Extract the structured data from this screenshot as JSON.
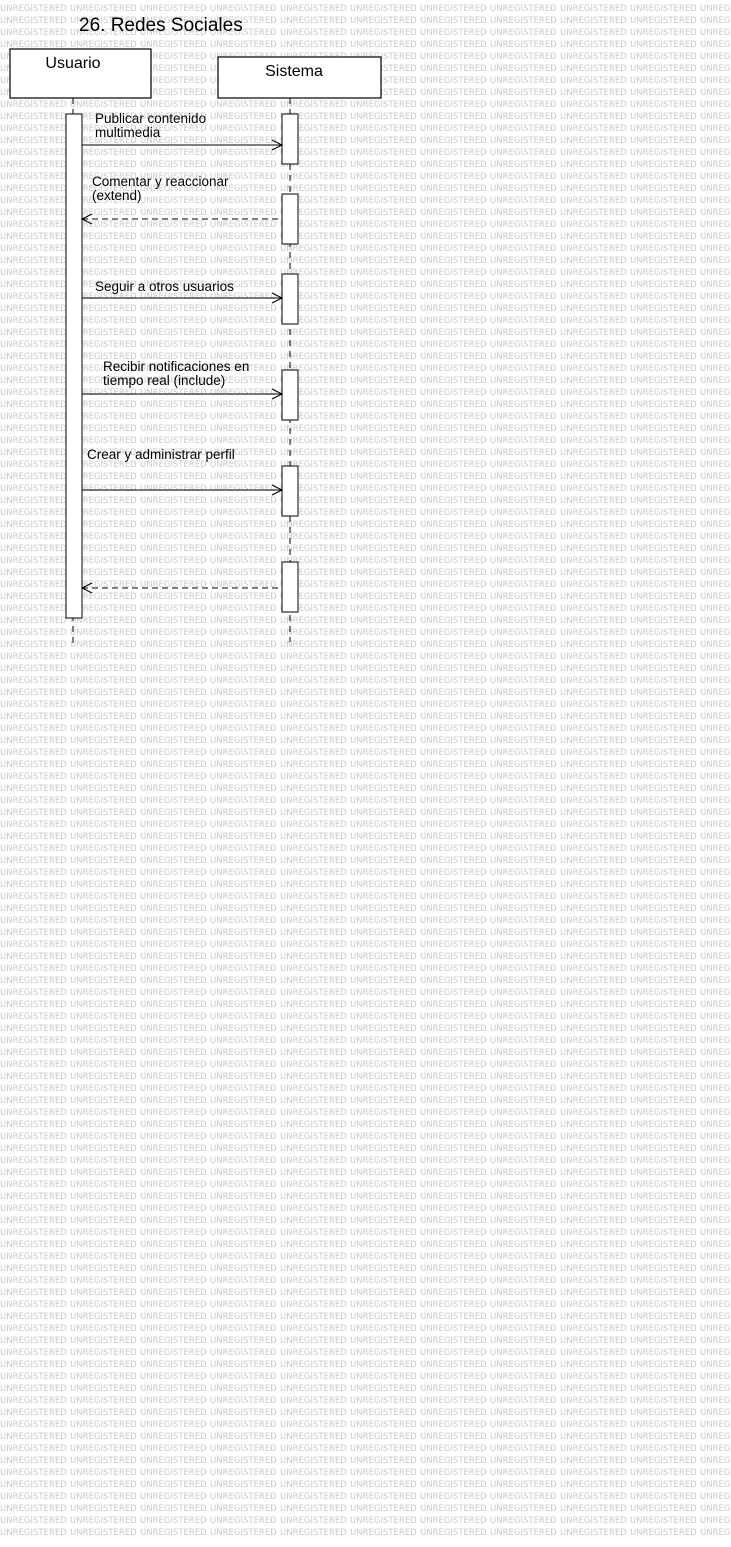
{
  "diagram": {
    "title": "26. Redes Sociales",
    "watermark_text": "UNREGISTERED",
    "participants": [
      {
        "id": "usuario",
        "name": "Usuario"
      },
      {
        "id": "sistema",
        "name": "Sistema"
      }
    ],
    "messages": [
      {
        "from": "usuario",
        "to": "sistema",
        "kind": "sync",
        "lines": [
          "Publicar contenido",
          "multimedia"
        ]
      },
      {
        "from": "sistema",
        "to": "usuario",
        "kind": "return",
        "lines": [
          "Comentar y reaccionar",
          "(extend)"
        ]
      },
      {
        "from": "usuario",
        "to": "sistema",
        "kind": "sync",
        "lines": [
          "Seguir a otros usuarios"
        ]
      },
      {
        "from": "usuario",
        "to": "sistema",
        "kind": "sync",
        "lines": [
          "Recibir notificaciones en",
          "tiempo real (include)"
        ]
      },
      {
        "from": "usuario",
        "to": "sistema",
        "kind": "sync",
        "lines": [
          "Crear y administrar perfil"
        ]
      },
      {
        "from": "sistema",
        "to": "usuario",
        "kind": "return",
        "lines": []
      }
    ],
    "colors": {
      "line": "#000000",
      "watermark": "#c8c8c8",
      "box_fill": "#ffffff"
    }
  }
}
